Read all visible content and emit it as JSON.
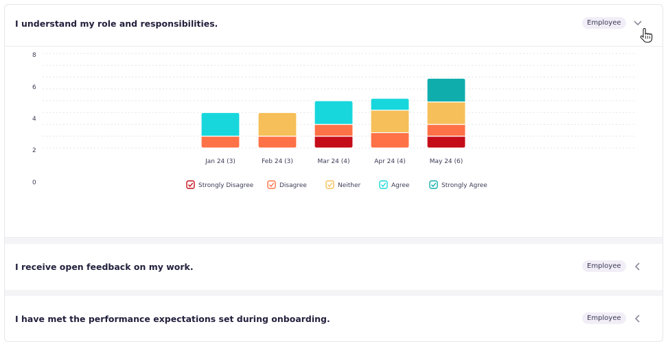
{
  "questions": [
    {
      "title": "I understand my role and responsibilities.",
      "badge": "Employee",
      "expanded": true
    },
    {
      "title": "I receive open feedback on my work.",
      "badge": "Employee",
      "expanded": false
    },
    {
      "title": "I have met the performance expectations set during onboarding.",
      "badge": "Employee",
      "expanded": false
    }
  ],
  "colors": {
    "Strongly Disagree": "#c50d19",
    "Disagree": "#ff7146",
    "Neither": "#f6bf59",
    "Agree": "#17d7dc",
    "Strongly Agree": "#10adad"
  },
  "chart_data": {
    "type": "bar",
    "stacked": true,
    "categories": [
      "Jan 24 (3)",
      "Feb 24 (3)",
      "Mar 24 (4)",
      "Apr 24 (4)",
      "May 24 (6)"
    ],
    "series": [
      {
        "name": "Strongly Disagree",
        "values": [
          0,
          0,
          1,
          0,
          1
        ]
      },
      {
        "name": "Disagree",
        "values": [
          1,
          1,
          1,
          1.3,
          1
        ]
      },
      {
        "name": "Neither",
        "values": [
          0,
          2,
          0,
          1.9,
          1.9
        ]
      },
      {
        "name": "Agree",
        "values": [
          2,
          0,
          2,
          1,
          0
        ]
      },
      {
        "name": "Strongly Agree",
        "values": [
          0,
          0,
          0,
          0,
          2
        ]
      }
    ],
    "y_ticks": [
      "0",
      "2",
      "4",
      "6",
      "8"
    ],
    "ylim": [
      0,
      8
    ],
    "grid": true,
    "legend": "bottom-center",
    "xlabel": "",
    "ylabel": ""
  }
}
